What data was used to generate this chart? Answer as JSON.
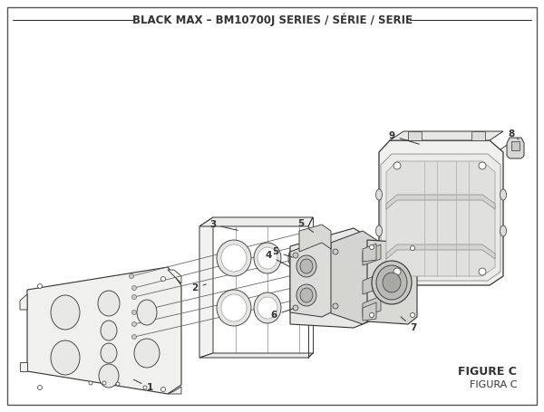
{
  "title": "BLACK MAX – BM10700J SERIES / SÉRIE / SERIE",
  "figure_label": "FIGURE C",
  "figura_label": "FIGURA C",
  "bg_color": "#ffffff",
  "border_color": "#444444",
  "line_color": "#333333",
  "thin_line": "#555555",
  "title_fontsize": 8.5,
  "label_fontsize": 7.5,
  "figsize": [
    6.0,
    4.55
  ],
  "dpi": 100
}
